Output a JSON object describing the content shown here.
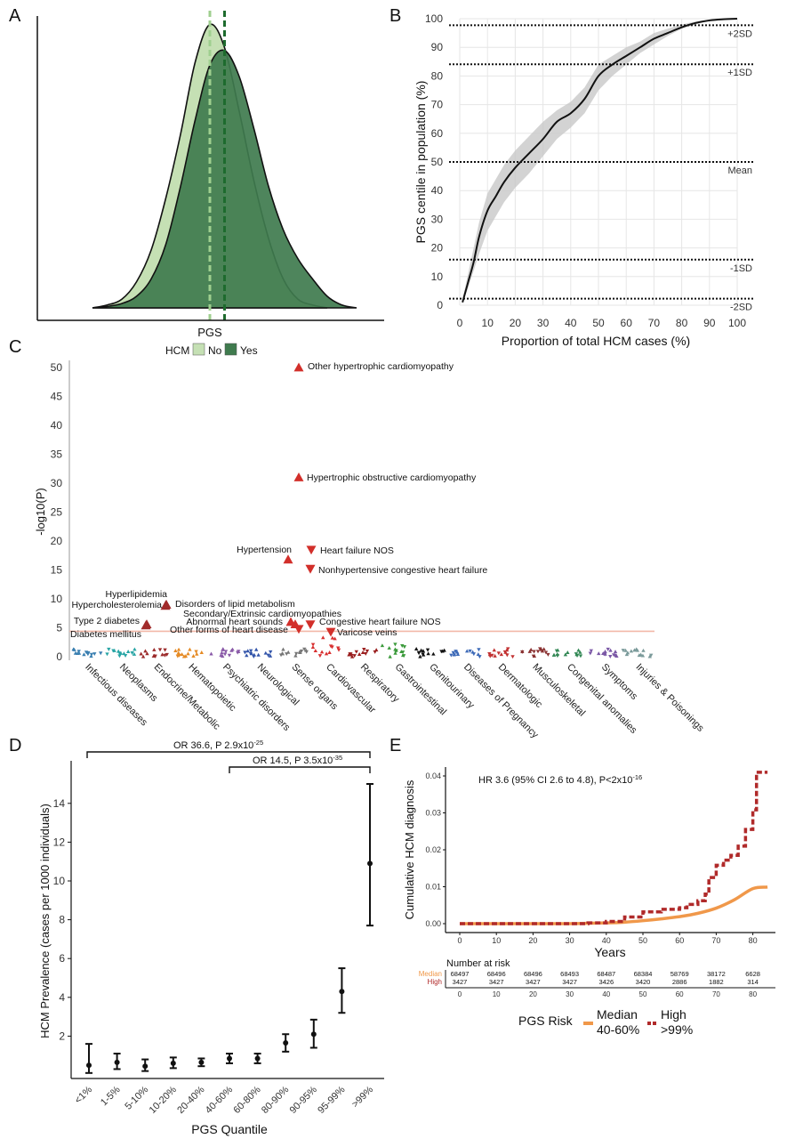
{
  "panel_labels": [
    "A",
    "B",
    "C",
    "D",
    "E"
  ],
  "colors": {
    "hcm_no": "#c5e0b4",
    "hcm_yes": "#3f7b4e",
    "mean_no": "#9fcf8f",
    "mean_yes": "#1e6b2e",
    "red": "#d22f2a",
    "median_orange": "#f0984a",
    "high_red": "#b02a2a"
  },
  "chart_data": [
    {
      "panel": "A",
      "type": "area",
      "xlabel": "PGS",
      "ylabel": "",
      "legend": {
        "title": "HCM",
        "entries": [
          "No",
          "Yes"
        ],
        "position": "bottom"
      },
      "series": [
        {
          "name": "No",
          "x": [
            -4,
            -3.5,
            -3,
            -2.5,
            -2,
            -1.5,
            -1,
            -0.5,
            0,
            0.5,
            1,
            1.5,
            2,
            2.5,
            3,
            3.5,
            4
          ],
          "values": [
            0,
            0.01,
            0.03,
            0.09,
            0.2,
            0.38,
            0.6,
            0.85,
            0.98,
            0.9,
            0.68,
            0.44,
            0.24,
            0.1,
            0.03,
            0.01,
            0
          ]
        },
        {
          "name": "Yes",
          "x": [
            -4,
            -3.5,
            -3,
            -2.5,
            -2,
            -1.5,
            -1,
            -0.5,
            0,
            0.5,
            1,
            1.5,
            2,
            2.5,
            3,
            3.5,
            4,
            4.5,
            5
          ],
          "values": [
            0,
            0.005,
            0.015,
            0.04,
            0.1,
            0.22,
            0.42,
            0.65,
            0.84,
            0.89,
            0.8,
            0.62,
            0.42,
            0.27,
            0.17,
            0.1,
            0.04,
            0.01,
            0
          ]
        }
      ],
      "means": {
        "No": 0,
        "Yes": 0.5
      }
    },
    {
      "panel": "B",
      "type": "line",
      "xlabel": "Proportion of total HCM cases (%)",
      "ylabel": "PGS centile in population (%)",
      "xlim": [
        0,
        100
      ],
      "ylim": [
        0,
        100
      ],
      "x_ticks": [
        0,
        10,
        20,
        30,
        40,
        50,
        60,
        70,
        80,
        90,
        100
      ],
      "y_ticks": [
        0,
        10,
        20,
        30,
        40,
        50,
        60,
        70,
        80,
        90,
        100
      ],
      "grid": true,
      "reference_lines": [
        {
          "label": "+2SD",
          "y": 97.7
        },
        {
          "label": "+1SD",
          "y": 84.1
        },
        {
          "label": "Mean",
          "y": 50
        },
        {
          "label": "-1SD",
          "y": 15.9
        },
        {
          "label": "-2SD",
          "y": 2.3
        }
      ],
      "series": [
        {
          "x": [
            1,
            3,
            5,
            7,
            10,
            13,
            16,
            20,
            25,
            30,
            35,
            40,
            45,
            50,
            55,
            60,
            65,
            70,
            75,
            80,
            85,
            90,
            95,
            100
          ],
          "values": [
            1,
            8,
            15,
            24,
            33,
            38,
            43,
            48,
            53,
            58,
            64,
            67,
            72,
            80,
            84,
            87,
            90,
            93,
            95,
            97,
            98.5,
            99.4,
            99.8,
            100
          ],
          "ci_low": [
            0.5,
            6,
            12,
            18,
            26,
            31,
            36,
            41,
            46,
            52,
            58,
            62,
            67,
            75,
            80,
            84,
            88,
            91,
            94,
            96.5,
            98,
            99.2,
            99.7,
            100
          ],
          "ci_high": [
            2,
            11,
            20,
            29,
            39,
            44,
            49,
            54,
            59,
            64,
            68,
            71,
            76,
            84,
            87,
            90,
            92,
            95,
            96.5,
            98,
            99,
            99.6,
            99.9,
            100
          ]
        }
      ]
    },
    {
      "panel": "C",
      "type": "scatter",
      "ylabel": "-log10(P)",
      "ylim": [
        0,
        51
      ],
      "y_ticks": [
        0,
        5,
        10,
        15,
        20,
        25,
        30,
        35,
        40,
        45,
        50
      ],
      "significance_threshold": 4.4,
      "categories": [
        "Infectious diseases",
        "Neoplasms",
        "Endocrine/Metabolic",
        "Hematopoietic",
        "Psychiatric disorders",
        "Neurological",
        "Sense organs",
        "Cardiovascular",
        "Respiratory",
        "Gastrointestinal",
        "Genitourinary",
        "Diseases of Pregnancy",
        "Dermatologic",
        "Musculoskeletal",
        "Congenital anomalies",
        "Symptoms",
        "Injuries & Poisonings"
      ],
      "annotated": [
        {
          "label": "Other hypertrophic cardiomyopathy",
          "category": "Cardiovascular",
          "y": 50,
          "direction": "up"
        },
        {
          "label": "Hypertrophic obstructive cardiomyopathy",
          "category": "Cardiovascular",
          "y": 31,
          "direction": "up"
        },
        {
          "label": "Hypertension",
          "category": "Cardiovascular",
          "y": 16.8,
          "direction": "up"
        },
        {
          "label": "Heart failure NOS",
          "category": "Cardiovascular",
          "y": 18.5,
          "direction": "down"
        },
        {
          "label": "Nonhypertensive congestive heart failure",
          "category": "Cardiovascular",
          "y": 15.2,
          "direction": "down"
        },
        {
          "label": "Hyperlipidemia",
          "category": "Endocrine/Metabolic",
          "y": 9,
          "direction": "up"
        },
        {
          "label": "Disorders of lipid metabolism",
          "category": "Endocrine/Metabolic",
          "y": 9,
          "direction": "up"
        },
        {
          "label": "Hypercholesterolemia",
          "category": "Endocrine/Metabolic",
          "y": 8.8,
          "direction": "up"
        },
        {
          "label": "Type 2 diabetes",
          "category": "Endocrine/Metabolic",
          "y": 5.6,
          "direction": "up"
        },
        {
          "label": "Diabetes mellitus",
          "category": "Endocrine/Metabolic",
          "y": 5.4,
          "direction": "up"
        },
        {
          "label": "Secondary/Extrinsic cardiomyopathies",
          "category": "Cardiovascular",
          "y": 6,
          "direction": "up"
        },
        {
          "label": "Abnormal heart sounds",
          "category": "Cardiovascular",
          "y": 5.6,
          "direction": "up"
        },
        {
          "label": "Other forms of heart disease",
          "category": "Cardiovascular",
          "y": 4.8,
          "direction": "down"
        },
        {
          "label": "Congestive heart failure NOS",
          "category": "Cardiovascular",
          "y": 5.6,
          "direction": "down"
        },
        {
          "label": "Varicose veins",
          "category": "Cardiovascular",
          "y": 4.3,
          "direction": "down"
        }
      ]
    },
    {
      "panel": "D",
      "type": "scatter",
      "xlabel": "PGS Quantile",
      "ylabel": "HCM Prevalence (cases per 1000 individuals)",
      "ylim": [
        0,
        15.5
      ],
      "y_ticks": [
        2,
        4,
        6,
        8,
        10,
        12,
        14
      ],
      "categories": [
        "<1%",
        "1-5%",
        "5-10%",
        "10-20%",
        "20-40%",
        "40-60%",
        "60-80%",
        "80-90%",
        "90-95%",
        "95-99%",
        ">99%"
      ],
      "values": [
        0.5,
        0.65,
        0.45,
        0.6,
        0.65,
        0.85,
        0.85,
        1.65,
        2.1,
        4.3,
        10.9
      ],
      "ci_low": [
        0.1,
        0.3,
        0.2,
        0.35,
        0.45,
        0.6,
        0.6,
        1.2,
        1.4,
        3.2,
        7.7
      ],
      "ci_high": [
        1.6,
        1.1,
        0.8,
        0.9,
        0.85,
        1.1,
        1.1,
        2.1,
        2.85,
        5.5,
        15
      ],
      "brackets": [
        {
          "label": "OR 36.6, P 2.9x10",
          "exponent": "-25",
          "from": "<1%",
          "to": ">99%"
        },
        {
          "label": "OR 14.5, P 3.5x10",
          "exponent": "-35",
          "from": "40-60%",
          "to": ">99%"
        }
      ]
    },
    {
      "panel": "E",
      "type": "line",
      "xlabel": "Years",
      "ylabel": "Cumulative HCM diagnosis",
      "xlim": [
        -3,
        84
      ],
      "ylim": [
        -0.002,
        0.042
      ],
      "x_ticks": [
        0,
        10,
        20,
        30,
        40,
        50,
        60,
        70,
        80
      ],
      "y_ticks": [
        "0.00",
        "0.01",
        "0.02",
        "0.03",
        "0.04"
      ],
      "annotation": {
        "text": "HR 3.6 (95% CI 2.6 to 4.8), P<2x10",
        "exponent": "-16"
      },
      "legend": {
        "title": "PGS Risk",
        "entries": [
          {
            "line1": "Median",
            "line2": "40-60%"
          },
          {
            "line1": "High",
            "line2": ">99%"
          }
        ],
        "position": "bottom"
      },
      "series": [
        {
          "name": "Median",
          "x": [
            0,
            10,
            20,
            30,
            40,
            45,
            50,
            55,
            60,
            65,
            70,
            75,
            80,
            84
          ],
          "values": [
            0,
            0,
            0,
            0,
            0.0002,
            0.0004,
            0.0008,
            0.0013,
            0.0019,
            0.0028,
            0.0042,
            0.0065,
            0.0095,
            0.0099
          ]
        },
        {
          "name": "High",
          "x": [
            0,
            10,
            20,
            30,
            35,
            40,
            45,
            50,
            55,
            60,
            62,
            65,
            67,
            68,
            70,
            72,
            74,
            76,
            78,
            80,
            81,
            84
          ],
          "values": [
            0,
            0,
            0,
            0,
            0.0002,
            0.0006,
            0.0018,
            0.0032,
            0.0039,
            0.0043,
            0.0052,
            0.0062,
            0.008,
            0.0125,
            0.0158,
            0.0172,
            0.0185,
            0.021,
            0.0255,
            0.0308,
            0.041,
            0.041
          ]
        }
      ],
      "risk_table": {
        "title": "Number at risk",
        "times": [
          "0",
          "10",
          "20",
          "30",
          "40",
          "50",
          "60",
          "70",
          "80"
        ],
        "rows": [
          {
            "label": "Median",
            "values": [
              "68497",
              "68496",
              "68496",
              "68493",
              "68487",
              "68384",
              "58769",
              "38172",
              "6628"
            ]
          },
          {
            "label": "High",
            "values": [
              "3427",
              "3427",
              "3427",
              "3427",
              "3426",
              "3420",
              "2886",
              "1882",
              "314"
            ]
          }
        ]
      }
    }
  ]
}
